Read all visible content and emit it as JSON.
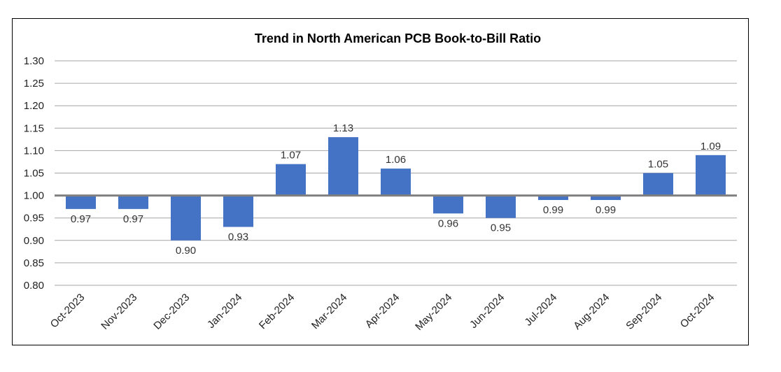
{
  "chart_data": {
    "type": "bar",
    "title": "Trend in North American PCB Book-to-Bill Ratio",
    "xlabel": "",
    "ylabel": "",
    "baseline": 1.0,
    "ylim": [
      0.8,
      1.3
    ],
    "yticks": [
      0.8,
      0.85,
      0.9,
      0.95,
      1.0,
      1.05,
      1.1,
      1.15,
      1.2,
      1.25,
      1.3
    ],
    "categories": [
      "Oct-2023",
      "Nov-2023",
      "Dec-2023",
      "Jan-2024",
      "Feb-2024",
      "Mar-2024",
      "Apr-2024",
      "May-2024",
      "Jun-2024",
      "Jul-2024",
      "Aug-2024",
      "Sep-2024",
      "Oct-2024"
    ],
    "values": [
      0.97,
      0.97,
      0.9,
      0.93,
      1.07,
      1.13,
      1.06,
      0.96,
      0.95,
      0.99,
      0.99,
      1.05,
      1.09
    ],
    "grid": true,
    "legend": "none",
    "colors": {
      "bar": "#4472C4",
      "grid": "#A6A6A6",
      "baseline": "#808080"
    }
  }
}
